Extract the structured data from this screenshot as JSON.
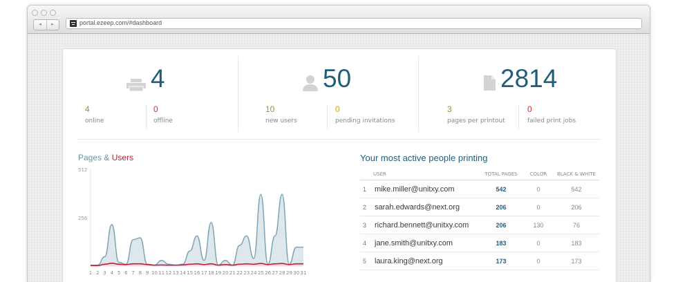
{
  "browser": {
    "url": "portal.ezeep.com/#dashboard",
    "back_icon": "◂",
    "forward_icon": "▸"
  },
  "stats": {
    "printers": {
      "icon": "printer-icon",
      "total": "4",
      "left_value": "4",
      "left_label": "online",
      "right_value": "0",
      "right_label": "offline"
    },
    "users": {
      "icon": "user-icon",
      "total": "50",
      "left_value": "10",
      "left_label": "new users",
      "right_value": "0",
      "right_label": "pending invitations"
    },
    "pages": {
      "icon": "document-icon",
      "total": "2814",
      "left_value": "3",
      "left_label": "pages per printout",
      "right_value": "0",
      "right_label": "failed print jobs"
    }
  },
  "chart_title": {
    "part1": "Pages",
    "amp": "&",
    "part2": "Users"
  },
  "colors": {
    "accent": "#1f5e7b",
    "pages_series": "#7ea6b5",
    "users_series": "#b7223a",
    "green": "#7ba337",
    "red": "#d0322b",
    "orange": "#d99a1b"
  },
  "chart_data": {
    "type": "area",
    "x": [
      "1",
      "2",
      "3",
      "4",
      "5",
      "6",
      "7",
      "8",
      "9",
      "10",
      "11",
      "12",
      "13",
      "14",
      "15",
      "16",
      "17",
      "18",
      "19",
      "20",
      "21",
      "22",
      "23",
      "24",
      "25",
      "26",
      "27",
      "28",
      "29",
      "30",
      "31"
    ],
    "ylim": [
      0,
      512
    ],
    "yticks": [
      "512",
      "256"
    ],
    "series": [
      {
        "name": "Pages",
        "values": [
          5,
          5,
          50,
          220,
          20,
          10,
          140,
          150,
          10,
          5,
          30,
          10,
          5,
          10,
          80,
          160,
          30,
          230,
          5,
          30,
          5,
          110,
          160,
          40,
          380,
          10,
          160,
          380,
          10,
          100,
          100
        ]
      },
      {
        "name": "Users",
        "values": [
          3,
          3,
          10,
          15,
          10,
          8,
          12,
          12,
          8,
          5,
          6,
          5,
          5,
          6,
          10,
          12,
          8,
          12,
          5,
          8,
          5,
          10,
          12,
          10,
          14,
          8,
          12,
          14,
          8,
          12,
          12
        ]
      }
    ]
  },
  "table": {
    "title": "Your most active people printing",
    "headers": [
      "USER",
      "TOTAL PAGES",
      "COLOR",
      "BLACK & WHITE"
    ],
    "rows": [
      {
        "idx": "1",
        "email": "mike.miller@unitxy.com",
        "total": "542",
        "color": "0",
        "bw": "542"
      },
      {
        "idx": "2",
        "email": "sarah.edwards@next.org",
        "total": "206",
        "color": "0",
        "bw": "206"
      },
      {
        "idx": "3",
        "email": "richard.bennett@unitxy.com",
        "total": "206",
        "color": "130",
        "bw": "76"
      },
      {
        "idx": "4",
        "email": "jane.smith@unitxy.com",
        "total": "183",
        "color": "0",
        "bw": "183"
      },
      {
        "idx": "5",
        "email": "laura.king@next.org",
        "total": "173",
        "color": "0",
        "bw": "173"
      }
    ]
  }
}
